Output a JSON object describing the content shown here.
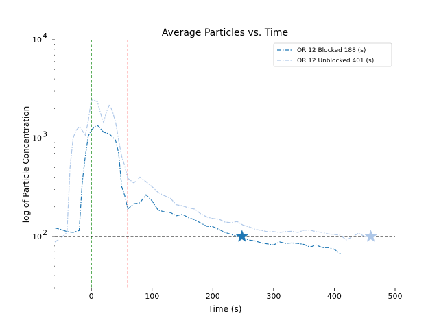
{
  "chart_data": {
    "type": "line",
    "title": "Average Particles vs. Time",
    "xlabel": "Time (s)",
    "ylabel": "log of Particle Concentration",
    "x_ticks": [
      "0",
      "100",
      "200",
      "300",
      "400",
      "500"
    ],
    "x_tick_values": [
      0,
      100,
      200,
      300,
      400,
      500
    ],
    "y_ticks": [
      {
        "value": 100,
        "base": "10",
        "exp": "2"
      },
      {
        "value": 1000,
        "base": "10",
        "exp": "3"
      },
      {
        "value": 10000,
        "base": "10",
        "exp": "4"
      }
    ],
    "xlim": [
      -60,
      500
    ],
    "ylim": [
      30,
      10000
    ],
    "y_scale": "log",
    "grid": false,
    "legend_position": "top-right",
    "vlines": [
      {
        "x": 0,
        "color": "#008000"
      },
      {
        "x": 60,
        "color": "#ff0000"
      }
    ],
    "hline": {
      "y": 100,
      "color": "#000000"
    },
    "series": [
      {
        "name": "OR 12 Blocked 188 (s)",
        "color": "#1f77b4",
        "marker_star": {
          "x": 248,
          "y": 100
        },
        "x": [
          -60,
          -50,
          -40,
          -30,
          -20,
          -15,
          -10,
          -5,
          0,
          5,
          10,
          15,
          20,
          30,
          40,
          45,
          50,
          55,
          60,
          70,
          80,
          90,
          100,
          110,
          120,
          130,
          140,
          150,
          160,
          170,
          180,
          190,
          200,
          210,
          220,
          230,
          240,
          250,
          260,
          270,
          280,
          290,
          300,
          310,
          320,
          330,
          340,
          350,
          360,
          370,
          380,
          390,
          400,
          410
        ],
        "y": [
          122,
          118,
          112,
          110,
          115,
          350,
          650,
          1050,
          1200,
          1300,
          1350,
          1250,
          1150,
          1100,
          950,
          700,
          320,
          260,
          190,
          215,
          220,
          265,
          230,
          185,
          178,
          175,
          162,
          168,
          155,
          148,
          137,
          127,
          126,
          118,
          110,
          105,
          100,
          96,
          92,
          90,
          86,
          84,
          82,
          88,
          85,
          86,
          85,
          83,
          78,
          82,
          77,
          77,
          74,
          67
        ]
      },
      {
        "name": "OR 12 Unblocked 401 (s)",
        "color": "#aec7e8",
        "marker_star": {
          "x": 460,
          "y": 100
        },
        "x": [
          -60,
          -50,
          -40,
          -35,
          -30,
          -25,
          -20,
          -15,
          -10,
          -5,
          0,
          5,
          10,
          15,
          20,
          25,
          30,
          35,
          40,
          45,
          50,
          55,
          60,
          70,
          80,
          90,
          100,
          110,
          120,
          130,
          140,
          150,
          160,
          170,
          180,
          190,
          200,
          210,
          220,
          230,
          240,
          250,
          260,
          270,
          280,
          290,
          300,
          310,
          320,
          330,
          340,
          350,
          360,
          370,
          380,
          390,
          400,
          410,
          420,
          430,
          440,
          450,
          460
        ],
        "y": [
          88,
          96,
          110,
          500,
          1000,
          1200,
          1300,
          1200,
          1050,
          1500,
          2450,
          2400,
          2350,
          1800,
          1450,
          1850,
          2200,
          1850,
          1450,
          950,
          650,
          520,
          390,
          350,
          400,
          360,
          320,
          280,
          260,
          245,
          210,
          205,
          195,
          190,
          170,
          158,
          152,
          150,
          140,
          138,
          142,
          130,
          125,
          118,
          115,
          112,
          112,
          110,
          112,
          113,
          110,
          116,
          116,
          112,
          110,
          106,
          105,
          103,
          92,
          100,
          108,
          100,
          99
        ]
      }
    ]
  }
}
